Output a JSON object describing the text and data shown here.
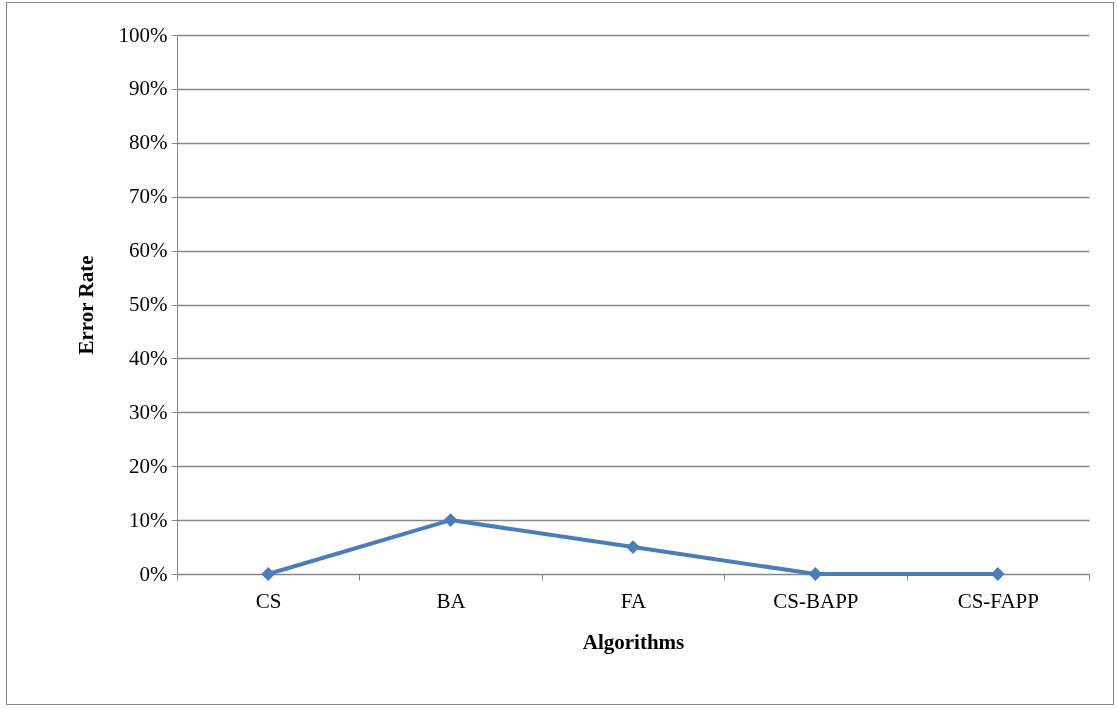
{
  "chart_data": {
    "type": "line",
    "xlabel": "Algorithms",
    "ylabel": "Error Rate",
    "categories": [
      "CS",
      "BA",
      "FA",
      "CS-BAPP",
      "CS-FAPP"
    ],
    "series": [
      {
        "color": "#4a7ebb",
        "values": [
          0,
          10,
          5,
          0,
          0
        ]
      }
    ],
    "ylim": [
      0,
      100
    ],
    "yticks": [
      {
        "value": 0,
        "label": "0%"
      },
      {
        "value": 10,
        "label": "10%"
      },
      {
        "value": 20,
        "label": "20%"
      },
      {
        "value": 30,
        "label": "30%"
      },
      {
        "value": 40,
        "label": "40%"
      },
      {
        "value": 50,
        "label": "50%"
      },
      {
        "value": 60,
        "label": "60%"
      },
      {
        "value": 70,
        "label": "70%"
      },
      {
        "value": 80,
        "label": "80%"
      },
      {
        "value": 90,
        "label": "90%"
      },
      {
        "value": 100,
        "label": "100%"
      }
    ],
    "grid": "y",
    "marker": "diamond",
    "line_style": "solid"
  }
}
